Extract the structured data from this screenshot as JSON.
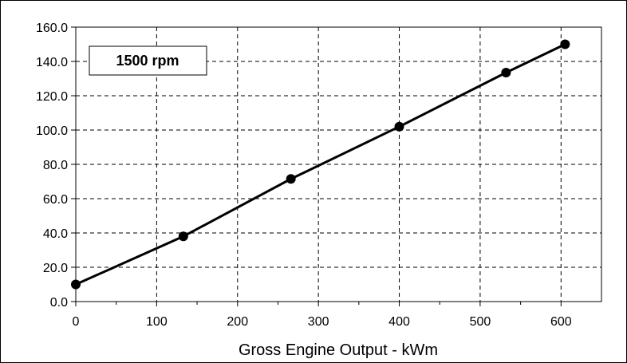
{
  "chart_data": {
    "type": "line",
    "title": "",
    "annotation": "1500 rpm",
    "xlabel": "Gross Engine Output - kWm",
    "ylabel": "",
    "xlim": [
      0,
      650
    ],
    "ylim": [
      0,
      160
    ],
    "x_ticks": [
      "0",
      "100",
      "200",
      "300",
      "400",
      "500",
      "600"
    ],
    "y_ticks": [
      "0.0",
      "20.0",
      "40.0",
      "60.0",
      "80.0",
      "100.0",
      "120.0",
      "140.0",
      "160.0"
    ],
    "grid": true,
    "series": [
      {
        "x": [
          0,
          133,
          266,
          400,
          532,
          605
        ],
        "y": [
          10.0,
          38.0,
          71.5,
          102.0,
          133.5,
          150.0
        ]
      }
    ]
  }
}
